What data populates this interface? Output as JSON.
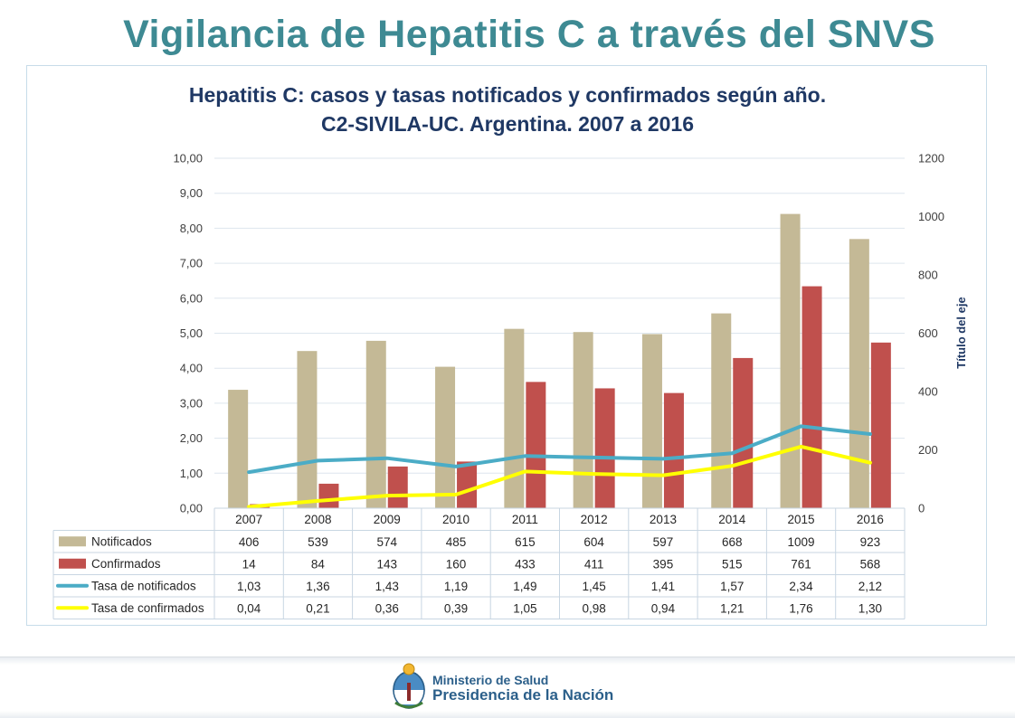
{
  "slide": {
    "title": "Vigilancia de Hepatitis C a través del SNVS"
  },
  "chart_data": {
    "type": "bar",
    "title_line1": "Hepatitis C: casos y tasas notificados y confirmados según año.",
    "title_line2": "C2-SIVILA-UC. Argentina. 2007 a 2016",
    "categories": [
      "2007",
      "2008",
      "2009",
      "2010",
      "2011",
      "2012",
      "2013",
      "2014",
      "2015",
      "2016"
    ],
    "y_left": {
      "ylim": [
        0,
        10
      ],
      "ticks": [
        "0,00",
        "1,00",
        "2,00",
        "3,00",
        "4,00",
        "5,00",
        "6,00",
        "7,00",
        "8,00",
        "9,00",
        "10,00"
      ]
    },
    "y_right": {
      "ylabel": "Título del eje",
      "ylim": [
        0,
        1200
      ],
      "ticks": [
        "0",
        "200",
        "400",
        "600",
        "800",
        "1000",
        "1200"
      ]
    },
    "grid": true,
    "series": [
      {
        "name": "Notificados",
        "kind": "bar",
        "axis": "right",
        "color": "#c4b996",
        "values": [
          406,
          539,
          574,
          485,
          615,
          604,
          597,
          668,
          1009,
          923
        ],
        "labels": [
          "406",
          "539",
          "574",
          "485",
          "615",
          "604",
          "597",
          "668",
          "1009",
          "923"
        ]
      },
      {
        "name": "Confirmados",
        "kind": "bar",
        "axis": "right",
        "color": "#c0504d",
        "values": [
          14,
          84,
          143,
          160,
          433,
          411,
          395,
          515,
          761,
          568
        ],
        "labels": [
          "14",
          "84",
          "143",
          "160",
          "433",
          "411",
          "395",
          "515",
          "761",
          "568"
        ]
      },
      {
        "name": "Tasa de notificados",
        "kind": "line",
        "axis": "left",
        "color": "#4bacc6",
        "values": [
          1.03,
          1.36,
          1.43,
          1.19,
          1.49,
          1.45,
          1.41,
          1.57,
          2.34,
          2.12
        ],
        "labels": [
          "1,03",
          "1,36",
          "1,43",
          "1,19",
          "1,49",
          "1,45",
          "1,41",
          "1,57",
          "2,34",
          "2,12"
        ]
      },
      {
        "name": "Tasa de confirmados",
        "kind": "line",
        "axis": "left",
        "color": "#ffff00",
        "values": [
          0.04,
          0.21,
          0.36,
          0.39,
          1.05,
          0.98,
          0.94,
          1.21,
          1.76,
          1.3
        ],
        "labels": [
          "0,04",
          "0,21",
          "0,36",
          "0,39",
          "1,05",
          "0,98",
          "0,94",
          "1,21",
          "1,76",
          "1,30"
        ]
      }
    ]
  },
  "footer": {
    "ministry_line1": "Ministerio de Salud",
    "ministry_line2": "Presidencia de la Nación"
  }
}
